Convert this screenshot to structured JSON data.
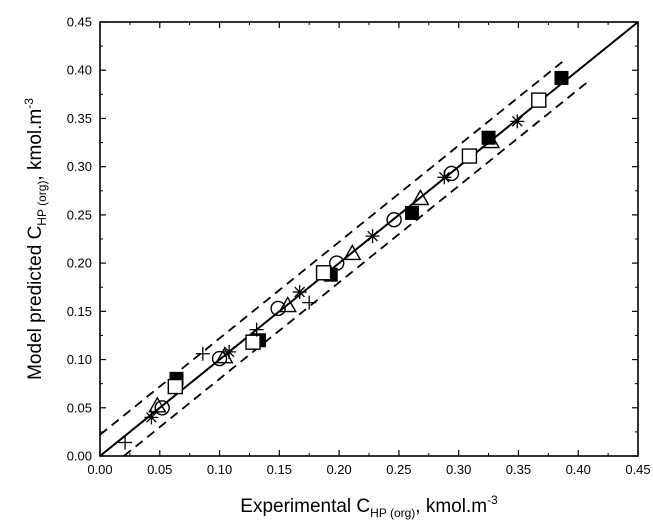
{
  "chart_data": {
    "type": "scatter",
    "title": "",
    "xlabel": {
      "pre": "Experimental C",
      "sub": "HP (org)",
      "post": ", kmol.m",
      "sup": "-3"
    },
    "ylabel": {
      "pre": "Model predicted C",
      "sub": "HP (org)",
      "post": ", kmol.m",
      "sup": "-3"
    },
    "xlim": [
      0.0,
      0.45
    ],
    "ylim": [
      0.0,
      0.45
    ],
    "xticks": [
      "0.00",
      "0.05",
      "0.10",
      "0.15",
      "0.20",
      "0.25",
      "0.30",
      "0.35",
      "0.40",
      "0.45"
    ],
    "yticks": [
      "0.00",
      "0.05",
      "0.10",
      "0.15",
      "0.20",
      "0.25",
      "0.30",
      "0.35",
      "0.40",
      "0.45"
    ],
    "grid": false,
    "lines": [
      {
        "style": "solid",
        "x": [
          0.0,
          0.45
        ],
        "y": [
          0.0,
          0.45
        ]
      },
      {
        "style": "dashed",
        "x": [
          0.0,
          0.39
        ],
        "y": [
          0.022,
          0.412
        ]
      },
      {
        "style": "dashed",
        "x": [
          0.02,
          0.41
        ],
        "y": [
          0.0,
          0.39
        ]
      }
    ],
    "series": [
      {
        "marker": "filled-square",
        "points": [
          [
            0.064,
            0.08
          ],
          [
            0.133,
            0.12
          ],
          [
            0.193,
            0.188
          ],
          [
            0.261,
            0.252
          ],
          [
            0.325,
            0.33
          ],
          [
            0.386,
            0.392
          ]
        ]
      },
      {
        "marker": "open-square",
        "points": [
          [
            0.063,
            0.072
          ],
          [
            0.128,
            0.118
          ],
          [
            0.187,
            0.19
          ],
          [
            0.309,
            0.311
          ],
          [
            0.367,
            0.369
          ]
        ]
      },
      {
        "marker": "open-circle",
        "points": [
          [
            0.052,
            0.05
          ],
          [
            0.1,
            0.101
          ],
          [
            0.149,
            0.153
          ],
          [
            0.198,
            0.2
          ],
          [
            0.246,
            0.245
          ],
          [
            0.294,
            0.293
          ]
        ]
      },
      {
        "marker": "open-triangle",
        "points": [
          [
            0.048,
            0.052
          ],
          [
            0.104,
            0.103
          ],
          [
            0.157,
            0.156
          ],
          [
            0.211,
            0.21
          ],
          [
            0.268,
            0.267
          ],
          [
            0.327,
            0.326
          ]
        ]
      },
      {
        "marker": "asterisk",
        "points": [
          [
            0.043,
            0.04
          ],
          [
            0.108,
            0.108
          ],
          [
            0.167,
            0.17
          ],
          [
            0.228,
            0.228
          ],
          [
            0.288,
            0.289
          ],
          [
            0.349,
            0.347
          ]
        ]
      },
      {
        "marker": "plus",
        "points": [
          [
            0.021,
            0.014
          ],
          [
            0.086,
            0.106
          ],
          [
            0.131,
            0.131
          ],
          [
            0.175,
            0.159
          ]
        ]
      }
    ]
  }
}
